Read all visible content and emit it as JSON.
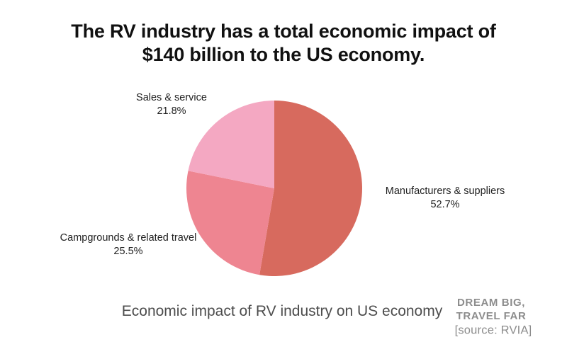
{
  "header": {
    "title_lines": [
      "The RV industry has a total economic impact of",
      "$140 billion to the US economy."
    ]
  },
  "chart_data": {
    "type": "pie",
    "title": "Economic impact of RV industry on US economy",
    "start_angle_deg": 0,
    "direction": "clockwise",
    "legend_position": "labels-around-pie",
    "slices": [
      {
        "label": "Manufacturers & suppliers",
        "value": 52.7,
        "pct_label": "52.7%",
        "color": "#d76a5e"
      },
      {
        "label": "Campgrounds & related travel",
        "value": 25.5,
        "pct_label": "25.5%",
        "color": "#ee8591"
      },
      {
        "label": "Sales & service",
        "value": 21.8,
        "pct_label": "21.8%",
        "color": "#f4a8c2"
      }
    ]
  },
  "footer": {
    "caption": "Economic impact of RV industry on US economy",
    "watermark_lines": [
      "DREAM BIG,",
      "TRAVEL FAR"
    ],
    "source": "[source: RVIA]"
  }
}
